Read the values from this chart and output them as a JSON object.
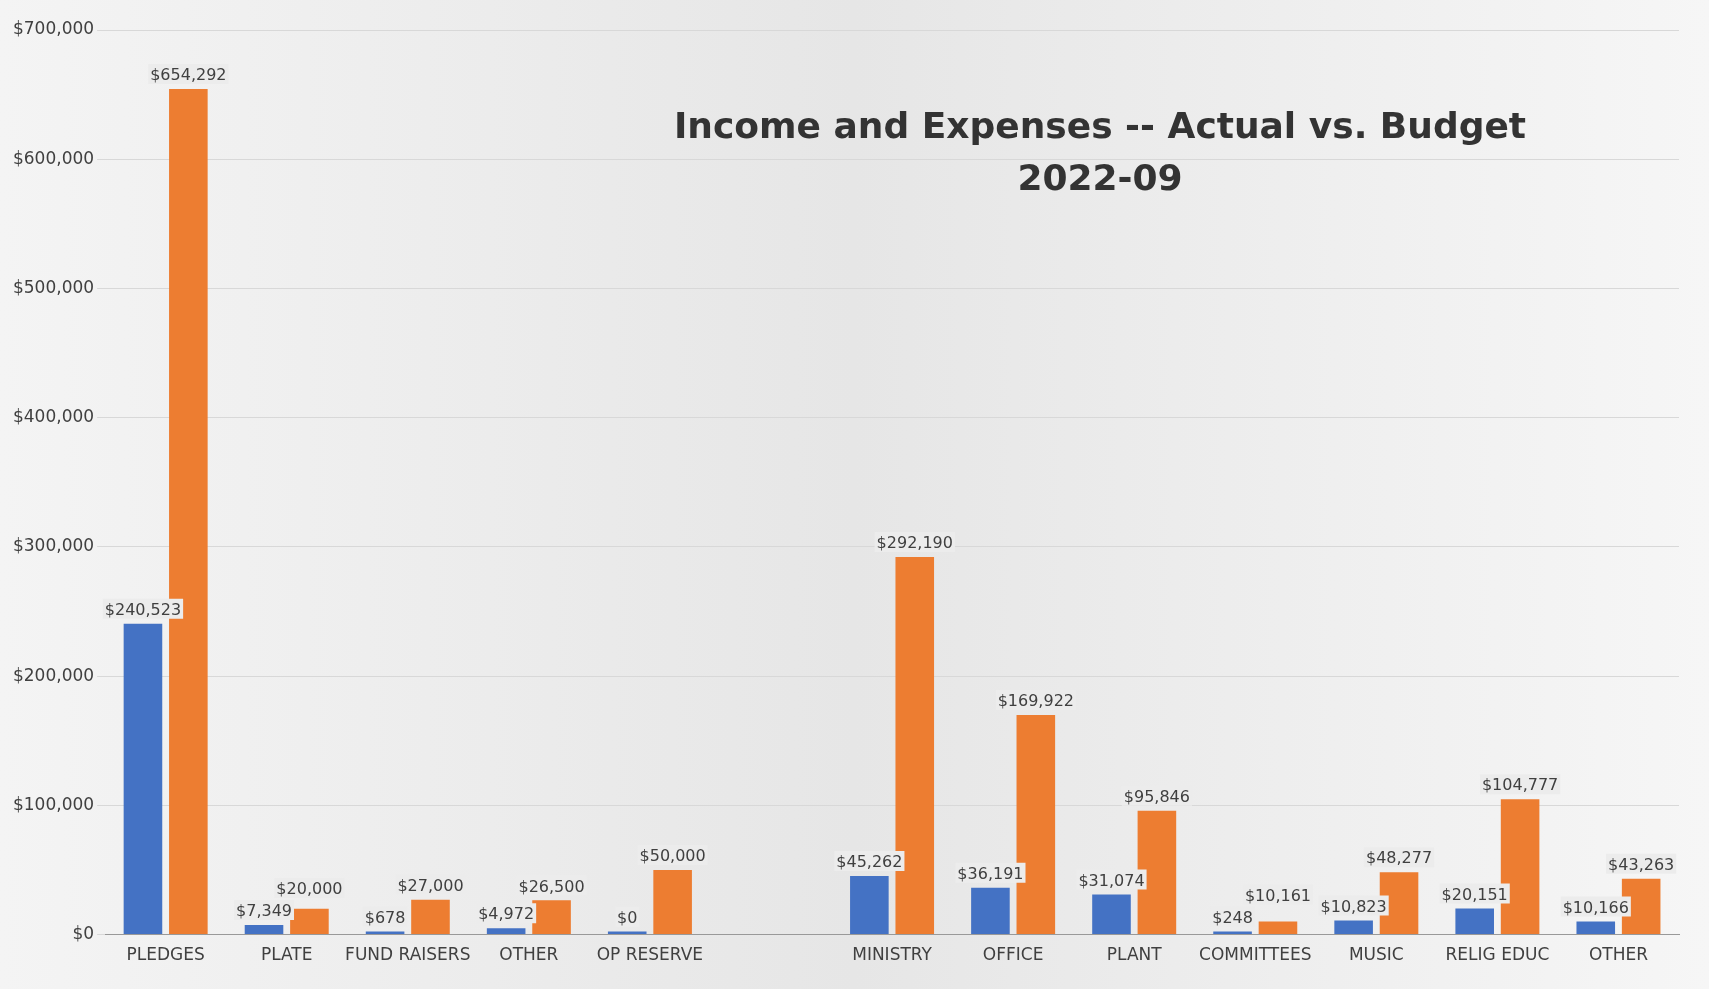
{
  "chart_data": {
    "type": "bar",
    "title": "Income and Expenses -- Actual vs. Budget",
    "subtitle": "2022-09",
    "categories": [
      "PLEDGES",
      "PLATE",
      "FUND RAISERS",
      "OTHER",
      "OP RESERVE",
      null,
      "MINISTRY",
      "OFFICE",
      "PLANT",
      "COMMITTEES",
      "MUSIC",
      "RELIG EDUC",
      "OTHER"
    ],
    "series": [
      {
        "color": "#4472c4",
        "values": [
          240523,
          7349,
          678,
          4972,
          0,
          null,
          45262,
          36191,
          31074,
          248,
          10823,
          20151,
          10166
        ],
        "value_labels": [
          "$240,523",
          "$7,349",
          "$678",
          "$4,972",
          "$0",
          null,
          "$45,262",
          "$36,191",
          "$31,074",
          "$248",
          "$10,823",
          "$20,151",
          "$10,166"
        ]
      },
      {
        "color": "#ed7d31",
        "values": [
          654292,
          20000,
          27000,
          26500,
          50000,
          null,
          292190,
          169922,
          95846,
          10161,
          48277,
          104777,
          43263
        ],
        "value_labels": [
          "$654,292",
          "$20,000",
          "$27,000",
          "$26,500",
          "$50,000",
          null,
          "$292,190",
          "$169,922",
          "$95,846",
          "$10,161",
          "$48,277",
          "$104,777",
          "$43,263"
        ]
      }
    ],
    "ylim": [
      0,
      700000
    ],
    "yticks": [
      {
        "value": 0,
        "label": "$0"
      },
      {
        "value": 100000,
        "label": "$100,000"
      },
      {
        "value": 200000,
        "label": "$200,000"
      },
      {
        "value": 300000,
        "label": "$300,000"
      },
      {
        "value": 400000,
        "label": "$400,000"
      },
      {
        "value": 500000,
        "label": "$500,000"
      },
      {
        "value": 600000,
        "label": "$600,000"
      },
      {
        "value": 700000,
        "label": "$700,000"
      }
    ],
    "grid": "y",
    "legend": false
  }
}
